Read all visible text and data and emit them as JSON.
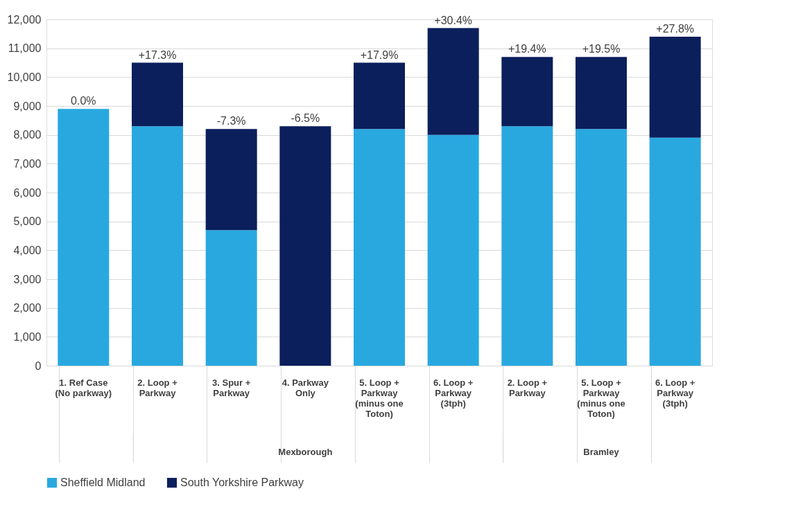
{
  "chart_data": {
    "type": "bar",
    "stacked": true,
    "categories": [
      "1. Ref Case (No parkway)",
      "2. Loop + Parkway",
      "3. Spur + Parkway",
      "4. Parkway Only",
      "5. Loop + Parkway (minus one Toton)",
      "6. Loop + Parkway (3tph)",
      "2. Loop + Parkway",
      "5. Loop + Parkway (minus one Toton)",
      "6. Loop + Parkway (3tph)"
    ],
    "series": [
      {
        "name": "Sheffield Midland",
        "color": "#29a8e0",
        "values": [
          8900,
          8300,
          4700,
          0,
          8200,
          8000,
          8300,
          8200,
          7900
        ]
      },
      {
        "name": "South Yorkshire Parkway",
        "color": "#0b1f5c",
        "values": [
          0,
          2200,
          3500,
          8300,
          2300,
          3700,
          2400,
          2500,
          3500
        ]
      }
    ],
    "ylim": [
      0,
      12000
    ],
    "yticks": [
      {
        "value": 0,
        "label": "0"
      },
      {
        "value": 1000,
        "label": "1,000"
      },
      {
        "value": 2000,
        "label": "2,000"
      },
      {
        "value": 3000,
        "label": "3,000"
      },
      {
        "value": 4000,
        "label": "4,000"
      },
      {
        "value": 5000,
        "label": "5,000"
      },
      {
        "value": 6000,
        "label": "6,000"
      },
      {
        "value": 7000,
        "label": "7,000"
      },
      {
        "value": 8000,
        "label": "8,000"
      },
      {
        "value": 9000,
        "label": "9,000"
      },
      {
        "value": 10000,
        "label": "10,000"
      },
      {
        "value": 11000,
        "label": "11,000"
      },
      {
        "value": 12000,
        "label": "12,000"
      }
    ],
    "grid": "y",
    "legend": "bottom",
    "annotations": [
      "0.0%",
      "+17.3%",
      "-7.3%",
      "-6.5%",
      "+17.9%",
      "+30.4%",
      "+19.4%",
      "+19.5%",
      "+27.8%",
      "Mexborough",
      "Bramley"
    ]
  }
}
